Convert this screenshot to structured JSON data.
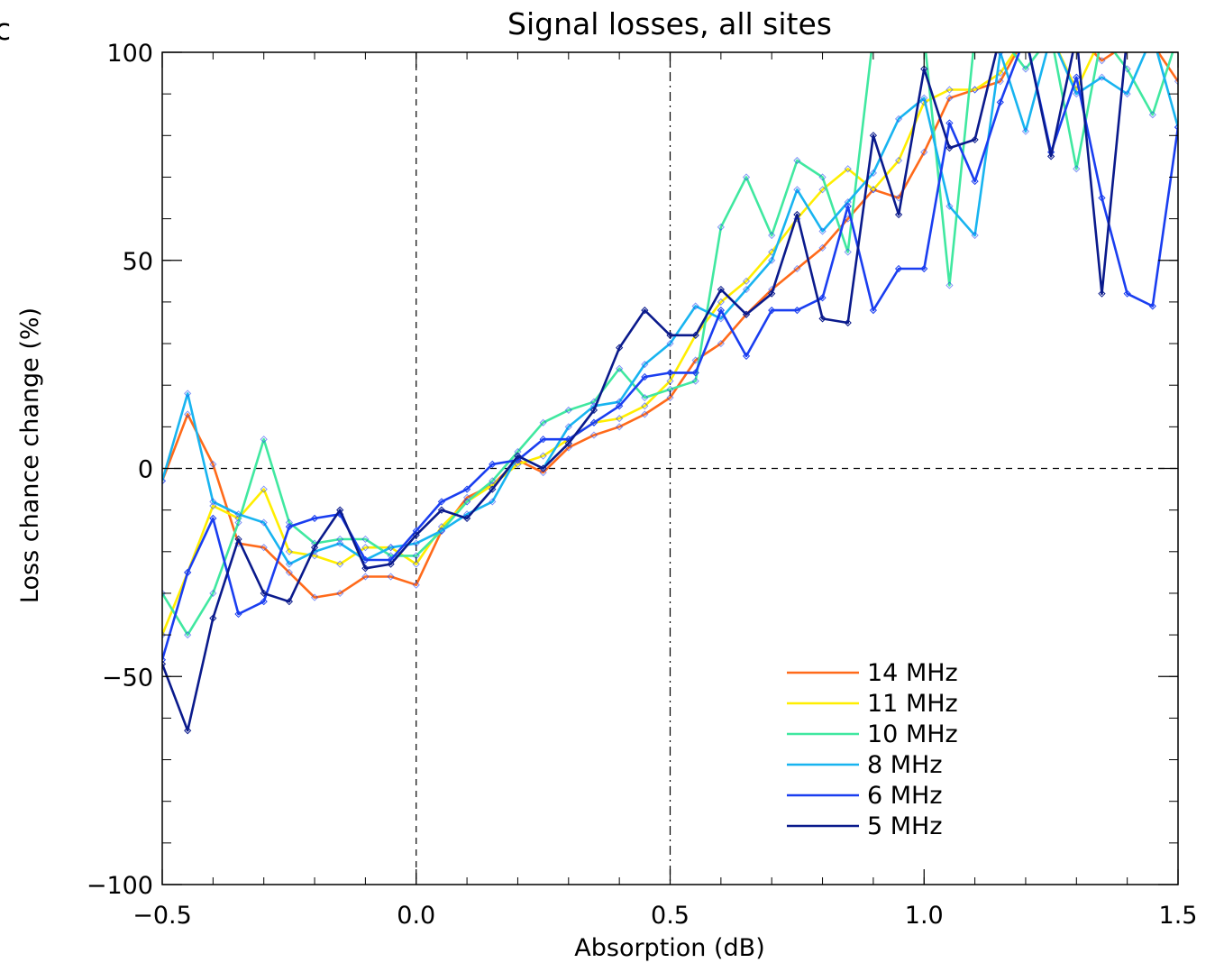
{
  "panel_label": "c",
  "chart_data": {
    "type": "line",
    "title": "Signal losses, all sites",
    "xlabel": "Absorption (dB)",
    "ylabel": "Loss chance change (%)",
    "xlim": [
      -0.5,
      1.5
    ],
    "ylim": [
      -100,
      100
    ],
    "x_ticks": [
      -0.5,
      0.0,
      0.5,
      1.0,
      1.5
    ],
    "x_tick_labels": [
      "−0.5",
      "0.0",
      "0.5",
      "1.0",
      "1.5"
    ],
    "y_ticks": [
      -100,
      -50,
      0,
      50,
      100
    ],
    "y_tick_labels": [
      "−100",
      "−50",
      "0",
      "50",
      "100"
    ],
    "grid": false,
    "reference_lines": [
      {
        "axis": "x",
        "value": 0.0,
        "style": "dashed"
      },
      {
        "axis": "x",
        "value": 0.5,
        "style": "dash-dot"
      },
      {
        "axis": "y",
        "value": 0,
        "style": "dashed"
      }
    ],
    "legend_position": "bottom-right",
    "x": [
      -0.5,
      -0.45,
      -0.4,
      -0.35,
      -0.3,
      -0.25,
      -0.2,
      -0.15,
      -0.1,
      -0.05,
      0.0,
      0.05,
      0.1,
      0.15,
      0.2,
      0.25,
      0.3,
      0.35,
      0.4,
      0.45,
      0.5,
      0.55,
      0.6,
      0.65,
      0.7,
      0.75,
      0.8,
      0.85,
      0.9,
      0.95,
      1.0,
      1.05,
      1.1,
      1.15,
      1.2,
      1.25,
      1.3,
      1.35,
      1.4,
      1.45,
      1.5
    ],
    "series": [
      {
        "name": "14 MHz",
        "color": "#ff6a1a",
        "values": [
          -3,
          13,
          1,
          -18,
          -19,
          -25,
          -31,
          -30,
          -26,
          -26,
          -28,
          -15,
          -7,
          -4,
          2,
          -1,
          5,
          8,
          10,
          13,
          17,
          26,
          30,
          37,
          43,
          48,
          53,
          60,
          67,
          65,
          76,
          89,
          91,
          93,
          104,
          104,
          104,
          98,
          102,
          102,
          93
        ]
      },
      {
        "name": "11 MHz",
        "color": "#ffee00",
        "values": [
          -40,
          -25,
          -9,
          -12,
          -5,
          -20,
          -21,
          -23,
          -19,
          -19,
          -23,
          -14,
          -8,
          -4,
          1,
          3,
          7,
          11,
          12,
          15,
          21,
          32,
          40,
          45,
          52,
          60,
          67,
          72,
          67,
          74,
          88,
          91,
          91,
          95,
          104,
          104,
          91,
          104,
          104,
          104,
          104
        ]
      },
      {
        "name": "10 MHz",
        "color": "#40e8a0",
        "values": [
          -30,
          -40,
          -30,
          -13,
          7,
          -13,
          -18,
          -17,
          -17,
          -21,
          -21,
          -15,
          -8,
          -3,
          4,
          11,
          14,
          16,
          24,
          17,
          19,
          21,
          58,
          70,
          56,
          74,
          70,
          52,
          104,
          104,
          104,
          44,
          104,
          104,
          96,
          104,
          72,
          104,
          96,
          85,
          104
        ]
      },
      {
        "name": "8 MHz",
        "color": "#18b4f0",
        "values": [
          -3,
          18,
          -8,
          -11,
          -13,
          -23,
          -20,
          -18,
          -22,
          -19,
          -18,
          -15,
          -11,
          -8,
          3,
          0,
          10,
          15,
          16,
          25,
          30,
          39,
          36,
          43,
          50,
          67,
          57,
          64,
          71,
          84,
          89,
          63,
          56,
          100,
          81,
          104,
          90,
          94,
          90,
          104,
          82
        ]
      },
      {
        "name": "6 MHz",
        "color": "#1a3ef0",
        "values": [
          -46,
          -25,
          -12,
          -35,
          -32,
          -14,
          -12,
          -11,
          -22,
          -22,
          -15,
          -8,
          -5,
          1,
          2,
          7,
          7,
          11,
          15,
          22,
          23,
          23,
          38,
          27,
          38,
          38,
          41,
          63,
          38,
          48,
          48,
          83,
          69,
          88,
          104,
          76,
          94,
          65,
          42,
          39,
          82
        ]
      },
      {
        "name": "5 MHz",
        "color": "#0a1a8c",
        "values": [
          -47,
          -63,
          -36,
          -17,
          -30,
          -32,
          -19,
          -10,
          -24,
          -23,
          -16,
          -10,
          -12,
          -5,
          3,
          0,
          6,
          14,
          29,
          38,
          32,
          32,
          43,
          37,
          42,
          61,
          36,
          35,
          80,
          61,
          96,
          77,
          79,
          104,
          104,
          75,
          104,
          42,
          104,
          104,
          104
        ]
      }
    ]
  }
}
